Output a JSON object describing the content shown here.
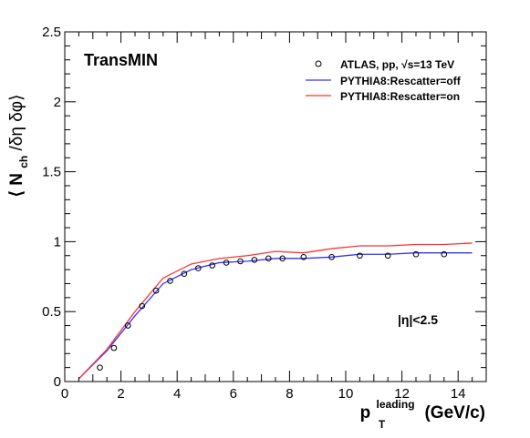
{
  "chart_data": {
    "type": "line",
    "panel_label": "TransMIN",
    "eta_cut": "|η|<2.5",
    "ylabel": {
      "open": "⟨ N",
      "sub": "ch",
      "rest": "/δη  δφ⟩"
    },
    "xlabel": {
      "main": "p",
      "sub": "T",
      "sup": "leading",
      "rest": " (GeV/c)"
    },
    "xlim": [
      0,
      15
    ],
    "ylim": [
      0,
      2.5
    ],
    "x_major_ticks": [
      0,
      2,
      4,
      6,
      8,
      10,
      12,
      14
    ],
    "x_tick_labels": [
      "0",
      "2",
      "4",
      "6",
      "8",
      "10",
      "12",
      "14"
    ],
    "y_major_ticks": [
      0,
      0.5,
      1,
      1.5,
      2,
      2.5
    ],
    "y_tick_labels": [
      "0",
      "0.5",
      "1",
      "1.5",
      "2",
      "2.5"
    ],
    "legend_position": "top-right",
    "series": [
      {
        "name": "ATLAS, pp, √s=13 TeV",
        "kind": "markers",
        "color": "#000000",
        "x": [
          1.25,
          1.75,
          2.25,
          2.75,
          3.25,
          3.75,
          4.25,
          4.75,
          5.25,
          5.75,
          6.25,
          6.75,
          7.25,
          7.75,
          8.5,
          9.5,
          10.5,
          11.5,
          12.5,
          13.5
        ],
        "y": [
          0.1,
          0.24,
          0.4,
          0.54,
          0.65,
          0.72,
          0.77,
          0.81,
          0.83,
          0.85,
          0.86,
          0.87,
          0.88,
          0.88,
          0.89,
          0.89,
          0.9,
          0.9,
          0.91,
          0.91
        ]
      },
      {
        "name": "PYTHIA8:Rescatter=off",
        "kind": "line",
        "color": "#3333ff",
        "x": [
          0.5,
          1.5,
          2.5,
          3.5,
          4.5,
          5.5,
          6.5,
          7.5,
          8.5,
          9.5,
          10.5,
          11.5,
          12.5,
          13.5,
          14.5
        ],
        "y": [
          0.02,
          0.22,
          0.47,
          0.7,
          0.8,
          0.85,
          0.86,
          0.88,
          0.88,
          0.89,
          0.91,
          0.91,
          0.92,
          0.92,
          0.92
        ]
      },
      {
        "name": "PYTHIA8:Rescatter=on",
        "kind": "line",
        "color": "#ff3333",
        "x": [
          0.5,
          1.5,
          2.5,
          3.5,
          4.5,
          5.5,
          6.5,
          7.5,
          8.5,
          9.5,
          10.5,
          11.5,
          12.5,
          13.5,
          14.5
        ],
        "y": [
          0.02,
          0.23,
          0.5,
          0.74,
          0.84,
          0.88,
          0.9,
          0.93,
          0.92,
          0.95,
          0.97,
          0.97,
          0.98,
          0.98,
          0.99
        ]
      }
    ]
  }
}
